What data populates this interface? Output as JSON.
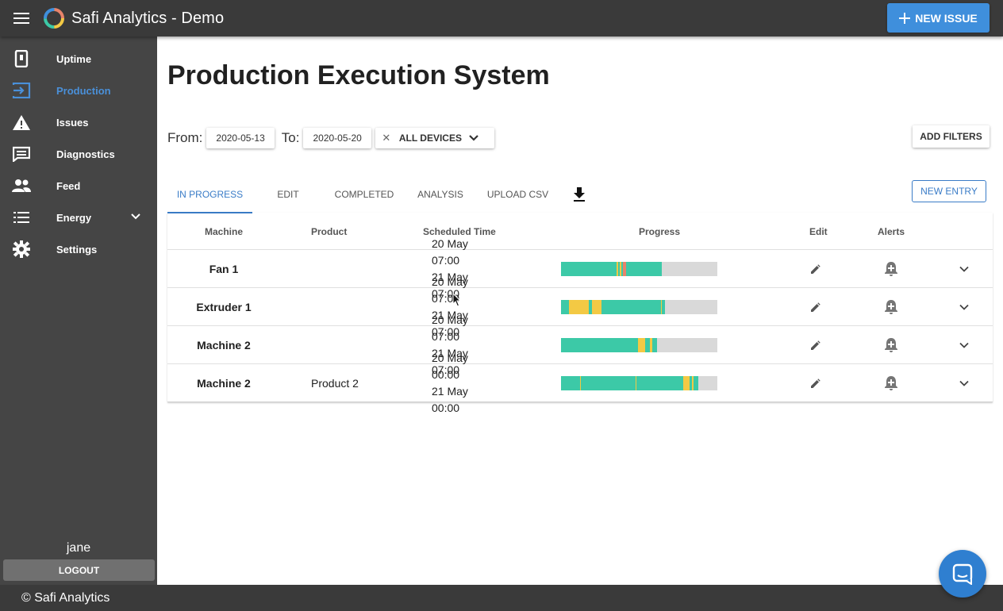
{
  "app": {
    "title": "Safi Analytics - Demo",
    "new_issue_label": "NEW ISSUE"
  },
  "sidebar": {
    "items": [
      {
        "label": "Uptime",
        "icon": "phone-device-icon",
        "active": false
      },
      {
        "label": "Production",
        "icon": "input-arrow-icon",
        "active": true
      },
      {
        "label": "Issues",
        "icon": "warning-icon",
        "active": false
      },
      {
        "label": "Diagnostics",
        "icon": "message-icon",
        "active": false
      },
      {
        "label": "Feed",
        "icon": "people-icon",
        "active": false
      },
      {
        "label": "Energy",
        "icon": "list-icon",
        "active": false,
        "expandable": true
      },
      {
        "label": "Settings",
        "icon": "gear-icon",
        "active": false
      }
    ],
    "user": "jane",
    "logout_label": "LOGOUT"
  },
  "footer": {
    "text": "© Safi Analytics"
  },
  "main": {
    "title": "Production Execution System",
    "filters": {
      "from_label": "From:",
      "from_value": "2020-05-13",
      "to_label": "To:",
      "to_value": "2020-05-20",
      "device_select": "ALL DEVICES",
      "add_filters_label": "ADD FILTERS"
    },
    "tabs": [
      {
        "label": "IN PROGRESS",
        "active": true
      },
      {
        "label": "EDIT",
        "active": false
      },
      {
        "label": "COMPLETED",
        "active": false
      },
      {
        "label": "ANALYSIS",
        "active": false
      },
      {
        "label": "UPLOAD CSV",
        "active": false
      }
    ],
    "new_entry_label": "NEW ENTRY",
    "table": {
      "headers": {
        "machine": "Machine",
        "product": "Product",
        "time": "Scheduled Time",
        "progress": "Progress",
        "edit": "Edit",
        "alerts": "Alerts"
      },
      "rows": [
        {
          "machine": "Fan 1",
          "product": "",
          "start": "20 May 07:00",
          "end": "21 May 07:00",
          "progress": [
            {
              "color": "#3cc9a7",
              "fraction": 0.355
            },
            {
              "color": "#f3c944",
              "fraction": 0.01
            },
            {
              "color": "#3cc9a7",
              "fraction": 0.01
            },
            {
              "color": "#f3c944",
              "fraction": 0.01
            },
            {
              "color": "#3cc9a7",
              "fraction": 0.01
            },
            {
              "color": "#e8836a",
              "fraction": 0.02
            },
            {
              "color": "#3cc9a7",
              "fraction": 0.23
            }
          ]
        },
        {
          "machine": "Extruder 1",
          "product": "",
          "start": "20 May 07:00",
          "end": "21 May 07:00",
          "progress": [
            {
              "color": "#3cc9a7",
              "fraction": 0.05
            },
            {
              "color": "#f3c944",
              "fraction": 0.13
            },
            {
              "color": "#3cc9a7",
              "fraction": 0.02
            },
            {
              "color": "#f3c944",
              "fraction": 0.06
            },
            {
              "color": "#3cc9a7",
              "fraction": 0.16
            },
            {
              "color": "#3cc9a7",
              "fraction": 0.22
            },
            {
              "color": "#f3c944",
              "fraction": 0.005
            },
            {
              "color": "#3cc9a7",
              "fraction": 0.02
            }
          ]
        },
        {
          "machine": "Machine 2",
          "product": "",
          "start": "20 May 07:00",
          "end": "21 May 07:00",
          "progress": [
            {
              "color": "#3cc9a7",
              "fraction": 0.49
            },
            {
              "color": "#f3c944",
              "fraction": 0.05
            },
            {
              "color": "#3cc9a7",
              "fraction": 0.03
            },
            {
              "color": "#f3c944",
              "fraction": 0.015
            },
            {
              "color": "#3cc9a7",
              "fraction": 0.03
            }
          ]
        },
        {
          "machine": "Machine 2",
          "product": "Product 2",
          "start": "20 May 00:00",
          "end": "21 May 00:00",
          "progress": [
            {
              "color": "#3cc9a7",
              "fraction": 0.12
            },
            {
              "color": "#f3c944",
              "fraction": 0.005
            },
            {
              "color": "#3cc9a7",
              "fraction": 0.35
            },
            {
              "color": "#f3c944",
              "fraction": 0.005
            },
            {
              "color": "#3cc9a7",
              "fraction": 0.3
            },
            {
              "color": "#f3c944",
              "fraction": 0.04
            },
            {
              "color": "#3cc9a7",
              "fraction": 0.02
            },
            {
              "color": "#f3c944",
              "fraction": 0.01
            },
            {
              "color": "#3cc9a7",
              "fraction": 0.03
            }
          ]
        }
      ]
    }
  },
  "colors": {
    "accent": "#3f8fdc",
    "topbar": "#3a3a3a",
    "sidebar": "#454545",
    "active_nav": "#4a90d9",
    "running": "#3cc9a7",
    "idle": "#f3c944",
    "down": "#e8836a",
    "remaining": "#d9d9d9"
  }
}
